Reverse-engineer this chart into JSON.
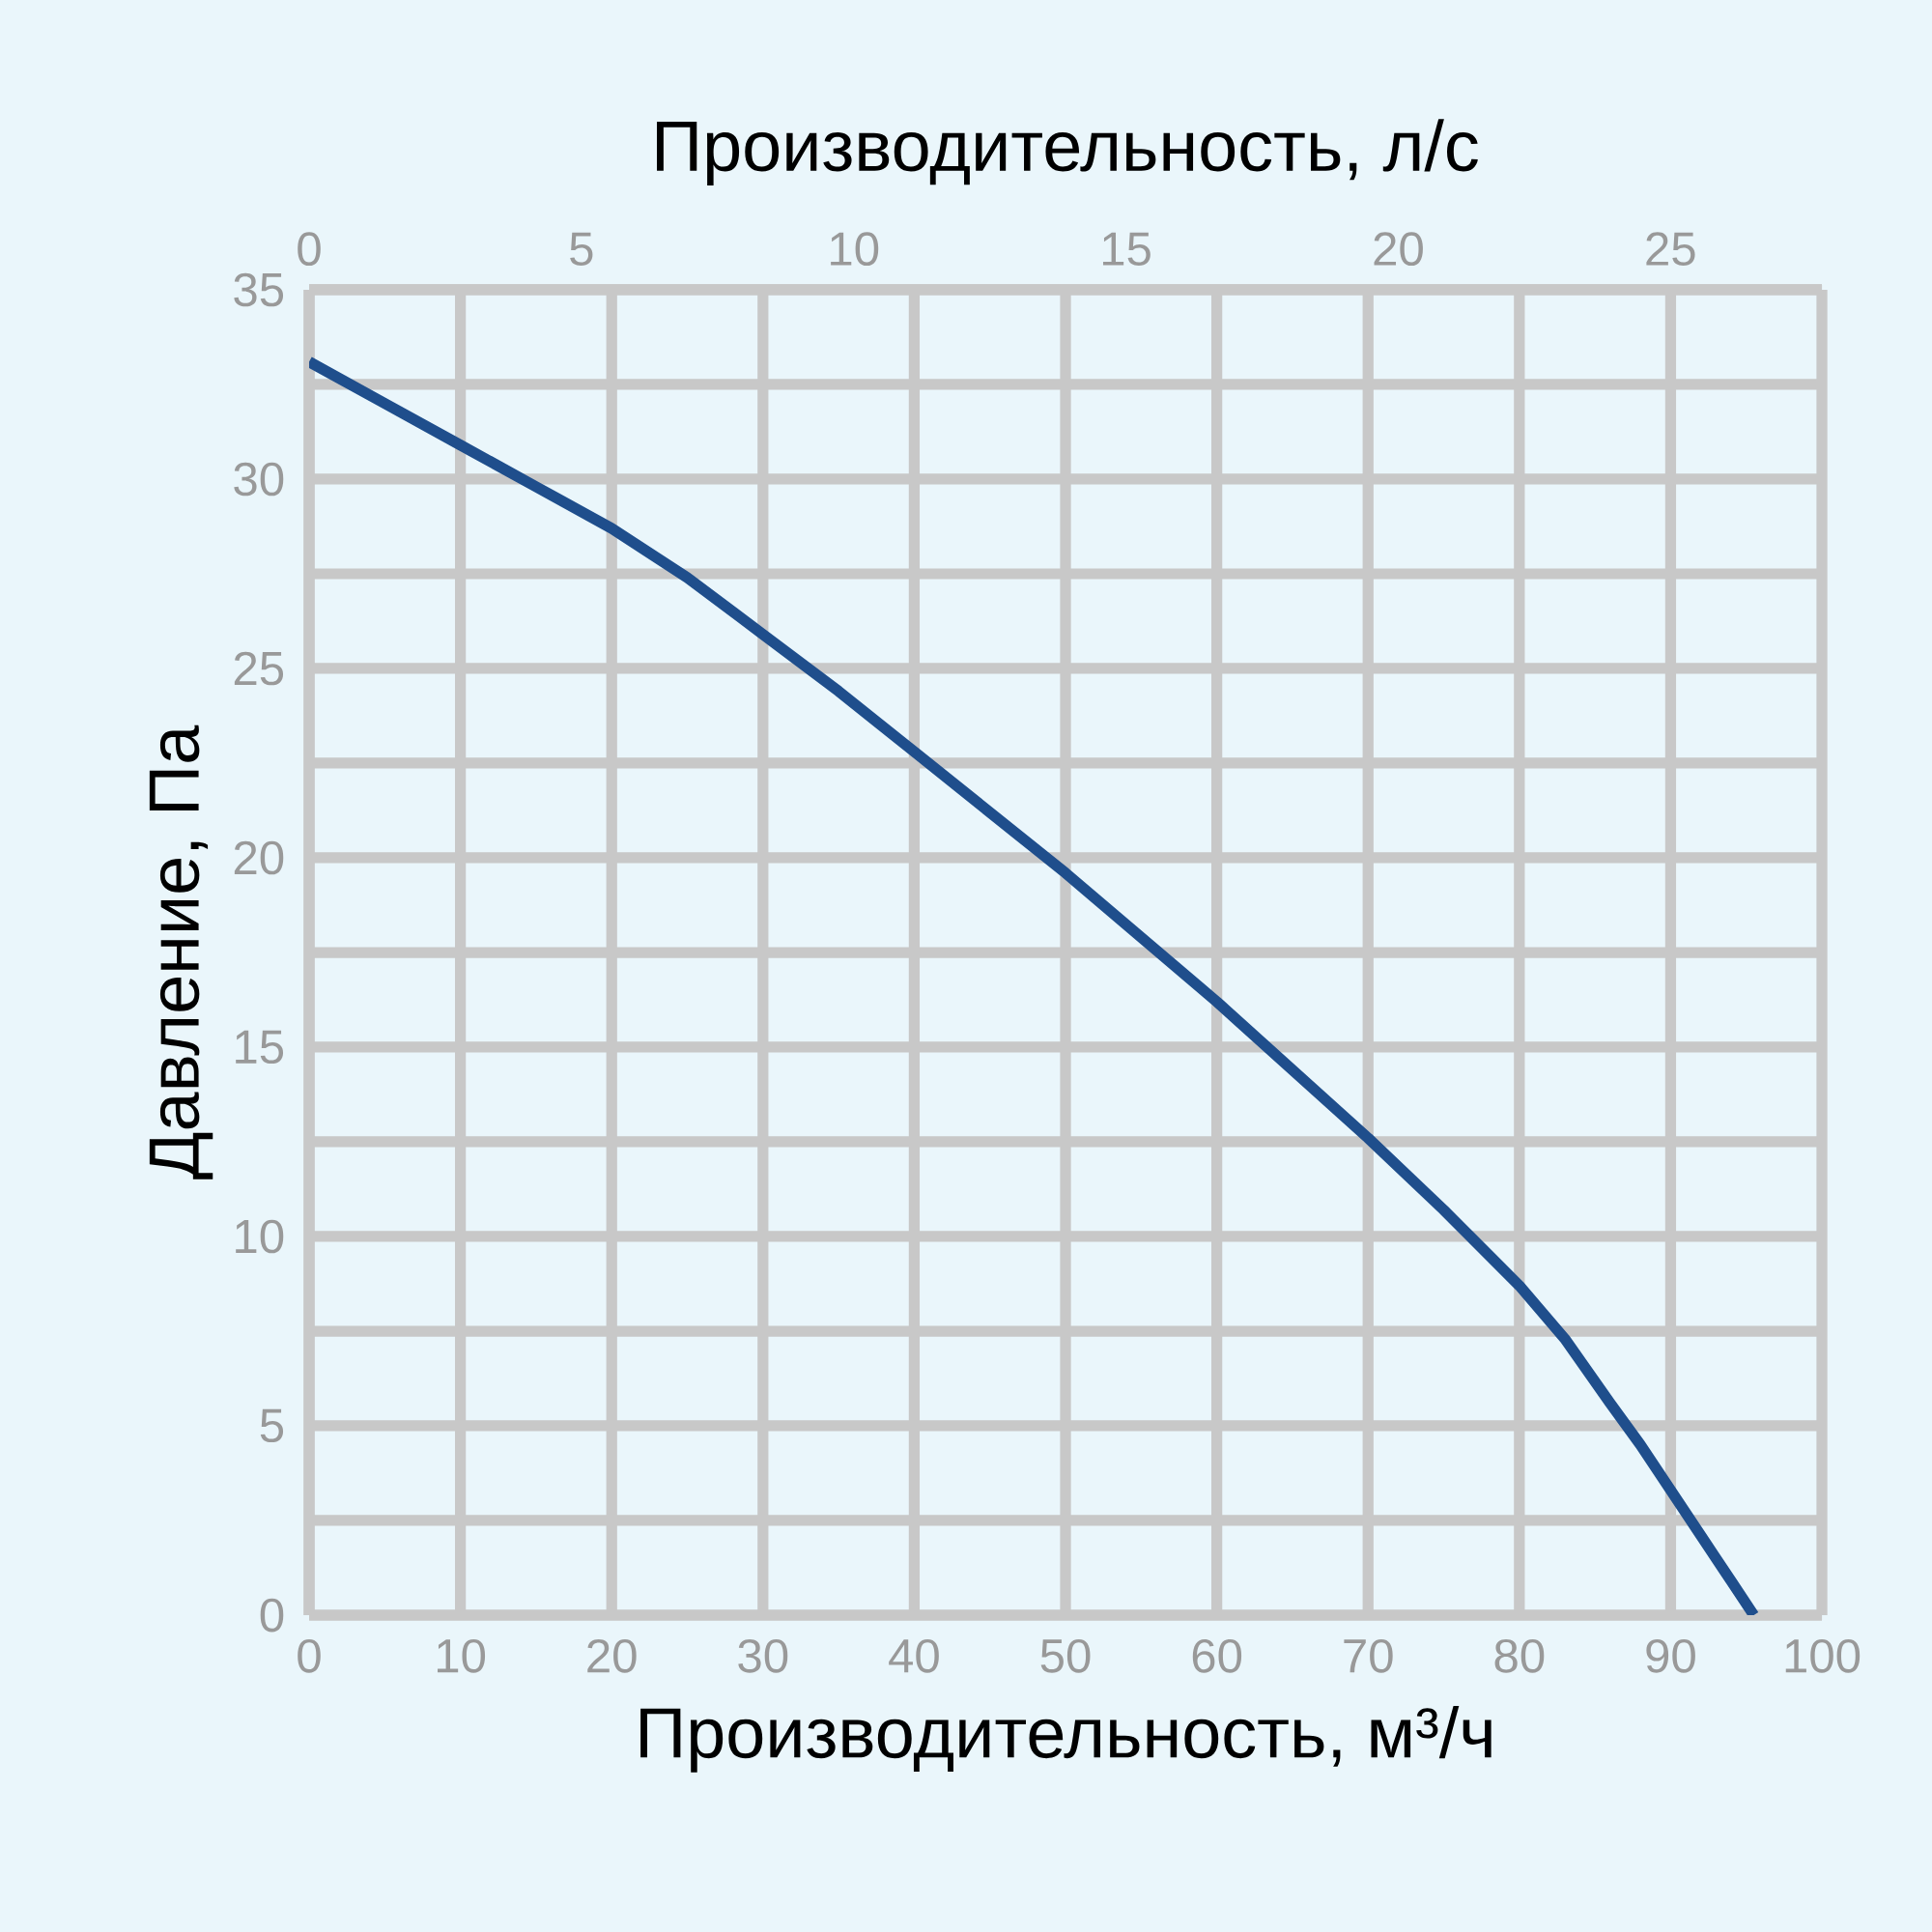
{
  "chart_data": {
    "type": "line",
    "xlabel": "Производительность, м³/ч",
    "x2label": "Производительность, л/с",
    "ylabel": "Давление, Па",
    "x": [
      0,
      5,
      10,
      15,
      20,
      25,
      30,
      35,
      40,
      45,
      50,
      55,
      60,
      65,
      70,
      75,
      80,
      83,
      86,
      88,
      90,
      92,
      94,
      95.5
    ],
    "series": [
      {
        "color": "#1f4e8c",
        "values": [
          33.1,
          32.0,
          30.9,
          29.8,
          28.7,
          27.4,
          25.9,
          24.4,
          22.8,
          21.2,
          19.6,
          17.9,
          16.2,
          14.4,
          12.6,
          10.7,
          8.7,
          7.3,
          5.6,
          4.5,
          3.3,
          2.1,
          0.9,
          0
        ]
      }
    ],
    "xlim": [
      0,
      100
    ],
    "xticks": [
      0,
      10,
      20,
      30,
      40,
      50,
      60,
      70,
      80,
      90,
      100
    ],
    "x2lim": [
      0,
      27.78
    ],
    "x2ticks": [
      0,
      5,
      10,
      15,
      20,
      25
    ],
    "ylim": [
      0,
      35
    ],
    "yticks": [
      0,
      {
        "value": 2.5,
        "label": null
      },
      5,
      {
        "value": 7.5,
        "label": null
      },
      10,
      {
        "value": 12.5,
        "label": null
      },
      15,
      {
        "value": 17.5,
        "label": null
      },
      20,
      {
        "value": 22.5,
        "label": null
      },
      25,
      {
        "value": 27.5,
        "label": null
      },
      30,
      {
        "value": 32.5,
        "label": null
      },
      35
    ],
    "grid": true
  }
}
